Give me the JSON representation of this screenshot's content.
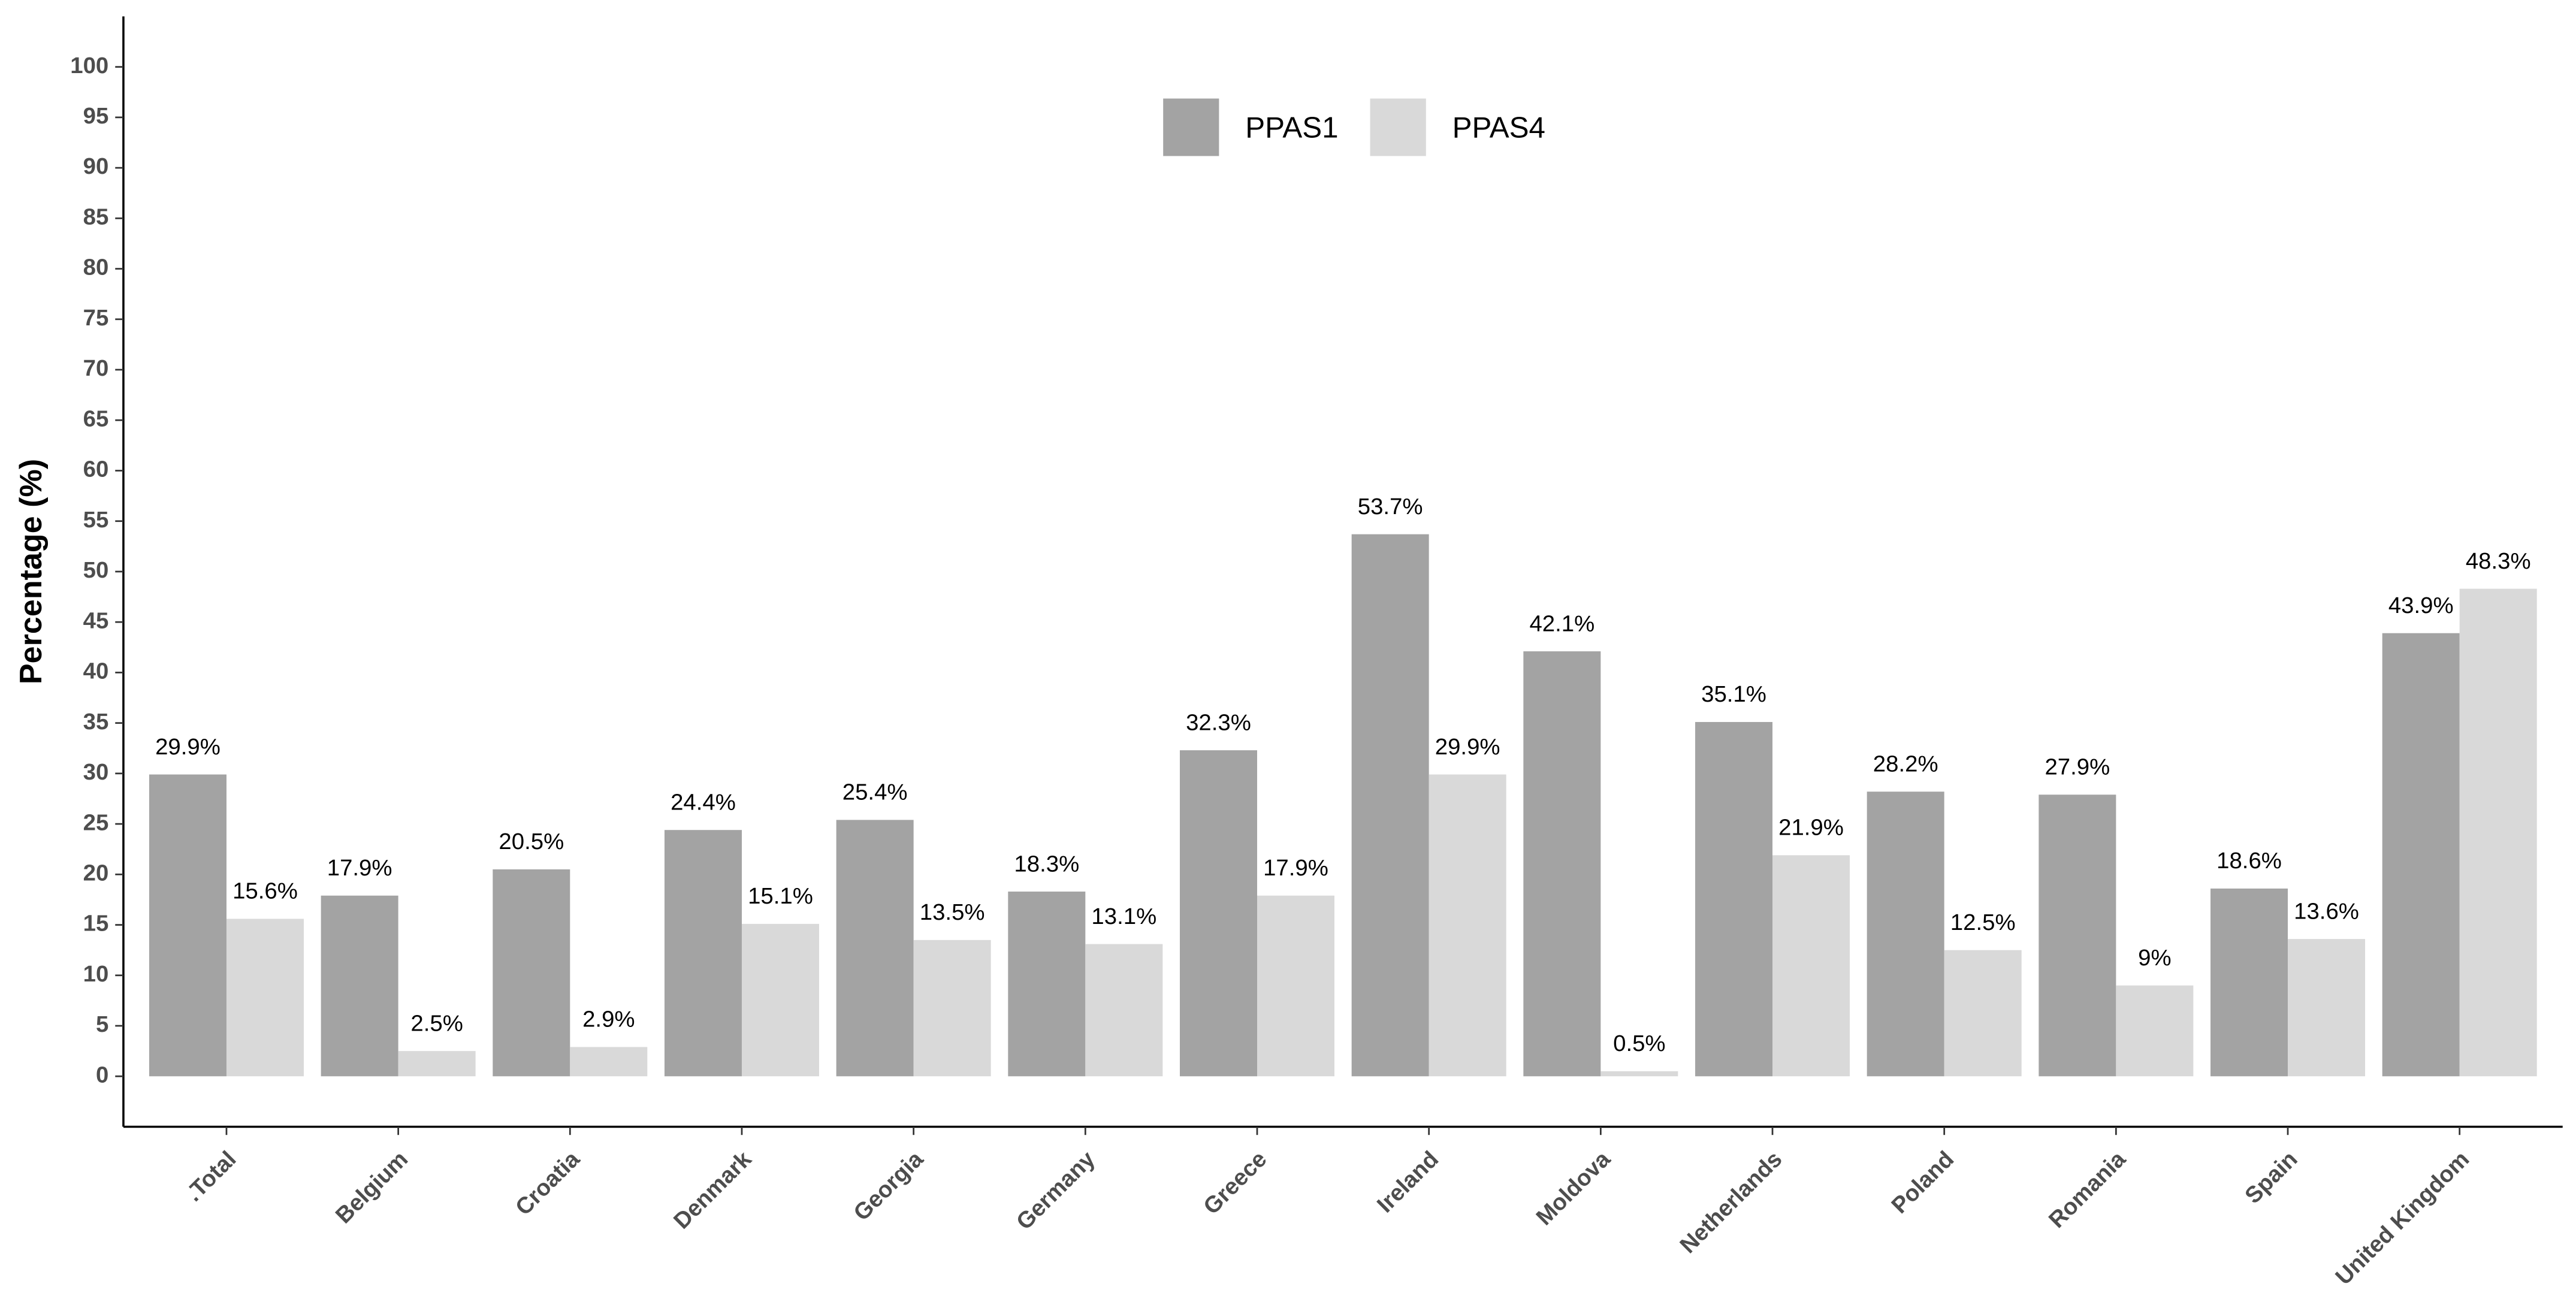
{
  "chart_data": {
    "type": "bar",
    "y_label": "Percentage (%)",
    "categories": [
      ".Total",
      "Belgium",
      "Croatia",
      "Denmark",
      "Georgia",
      "Germany",
      "Greece",
      "Ireland",
      "Moldova",
      "Netherlands",
      "Poland",
      "Romania",
      "Spain",
      "United Kingdom"
    ],
    "series": [
      {
        "name": "PPAS1",
        "color": "#a3a3a3",
        "values": [
          29.9,
          17.9,
          20.5,
          24.4,
          25.4,
          18.3,
          32.3,
          53.7,
          42.1,
          35.1,
          28.2,
          27.9,
          18.6,
          43.9
        ],
        "value_labels": [
          "29.9%",
          "17.9%",
          "20.5%",
          "24.4%",
          "25.4%",
          "18.3%",
          "32.3%",
          "53.7%",
          "42.1%",
          "35.1%",
          "28.2%",
          "27.9%",
          "18.6%",
          "43.9%"
        ]
      },
      {
        "name": "PPAS4",
        "color": "#d9d9d9",
        "values": [
          15.6,
          2.5,
          2.9,
          15.1,
          13.5,
          13.1,
          17.9,
          29.9,
          0.5,
          21.9,
          12.5,
          9,
          13.6,
          48.3
        ],
        "value_labels": [
          "15.6%",
          "2.5%",
          "2.9%",
          "15.1%",
          "13.5%",
          "13.1%",
          "17.9%",
          "29.9%",
          "0.5%",
          "21.9%",
          "12.5%",
          "9%",
          "13.6%",
          "48.3%"
        ]
      }
    ],
    "ylim": [
      -5,
      105
    ],
    "yticks": [
      0,
      5,
      10,
      15,
      20,
      25,
      30,
      35,
      40,
      45,
      50,
      55,
      60,
      65,
      70,
      75,
      80,
      85,
      90,
      95,
      100
    ],
    "grid": false,
    "legend": "top"
  }
}
